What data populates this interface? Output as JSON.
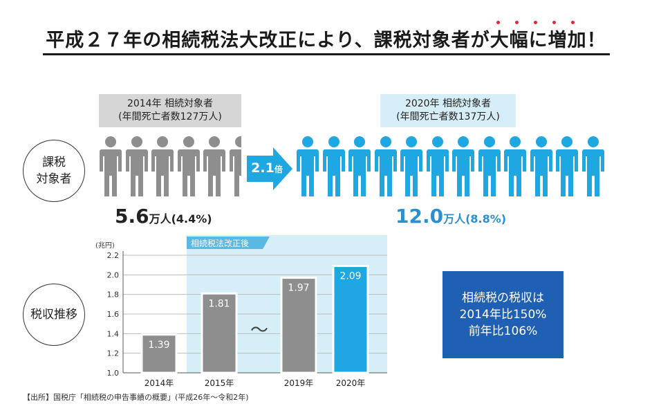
{
  "title": {
    "text_before": "平成２７年の相続税法大改正により、課税対象者が",
    "text_emph": "大幅に増加",
    "text_after": "！"
  },
  "colors": {
    "gray": "#8e8e8e",
    "blue": "#1ea7e0",
    "accent_dot": "#e0283c",
    "infobox": "#2060b4"
  },
  "left_group": {
    "line1": "2014年 相続対象者",
    "line2": "(年間死亡者数127万人)",
    "total_value": "5.6",
    "total_suffix": "万人(4.4%)"
  },
  "right_group": {
    "line1": "2020年 相続対象者",
    "line2": "(年間死亡者数137万人)",
    "total_value": "12.0",
    "total_suffix": "万人(8.8%)"
  },
  "arrow": {
    "value": "2.1",
    "suffix": "倍"
  },
  "circle_top": {
    "line1": "課税",
    "line2": "対象者"
  },
  "circle_bottom": {
    "text": "税収推移"
  },
  "infobox": {
    "line1": "相続税の税収は",
    "line2": "2014年比150%",
    "line3": "前年比106%"
  },
  "source": "【出所】国税庁「相続税の申告事績の概要」(平成26年〜令和2年)",
  "people_icons": {
    "gray_count": 5.6,
    "blue_count": 12,
    "icon": "person-icon"
  },
  "chart_data": {
    "type": "bar",
    "categories": [
      "2014年",
      "2015年",
      "2019年",
      "2020年"
    ],
    "values": [
      1.39,
      1.81,
      1.97,
      2.09
    ],
    "value_labels": [
      "1.39",
      "1.81",
      "1.97",
      "2.09"
    ],
    "bar_colors": [
      "#8e8e8e",
      "#8e8e8e",
      "#8e8e8e",
      "#1ea7e0"
    ],
    "ylabel": "(兆円)",
    "ylim": [
      1.0,
      2.2
    ],
    "yticks": [
      1.0,
      1.2,
      1.4,
      1.6,
      1.8,
      2.0,
      2.2
    ],
    "ytick_labels": [
      "1.0",
      "1.2",
      "1.4",
      "1.6",
      "1.8",
      "2.0",
      "2.2"
    ],
    "grid": true,
    "highlight_region_label": "相続税法改正後",
    "gap_symbol": "〜"
  }
}
